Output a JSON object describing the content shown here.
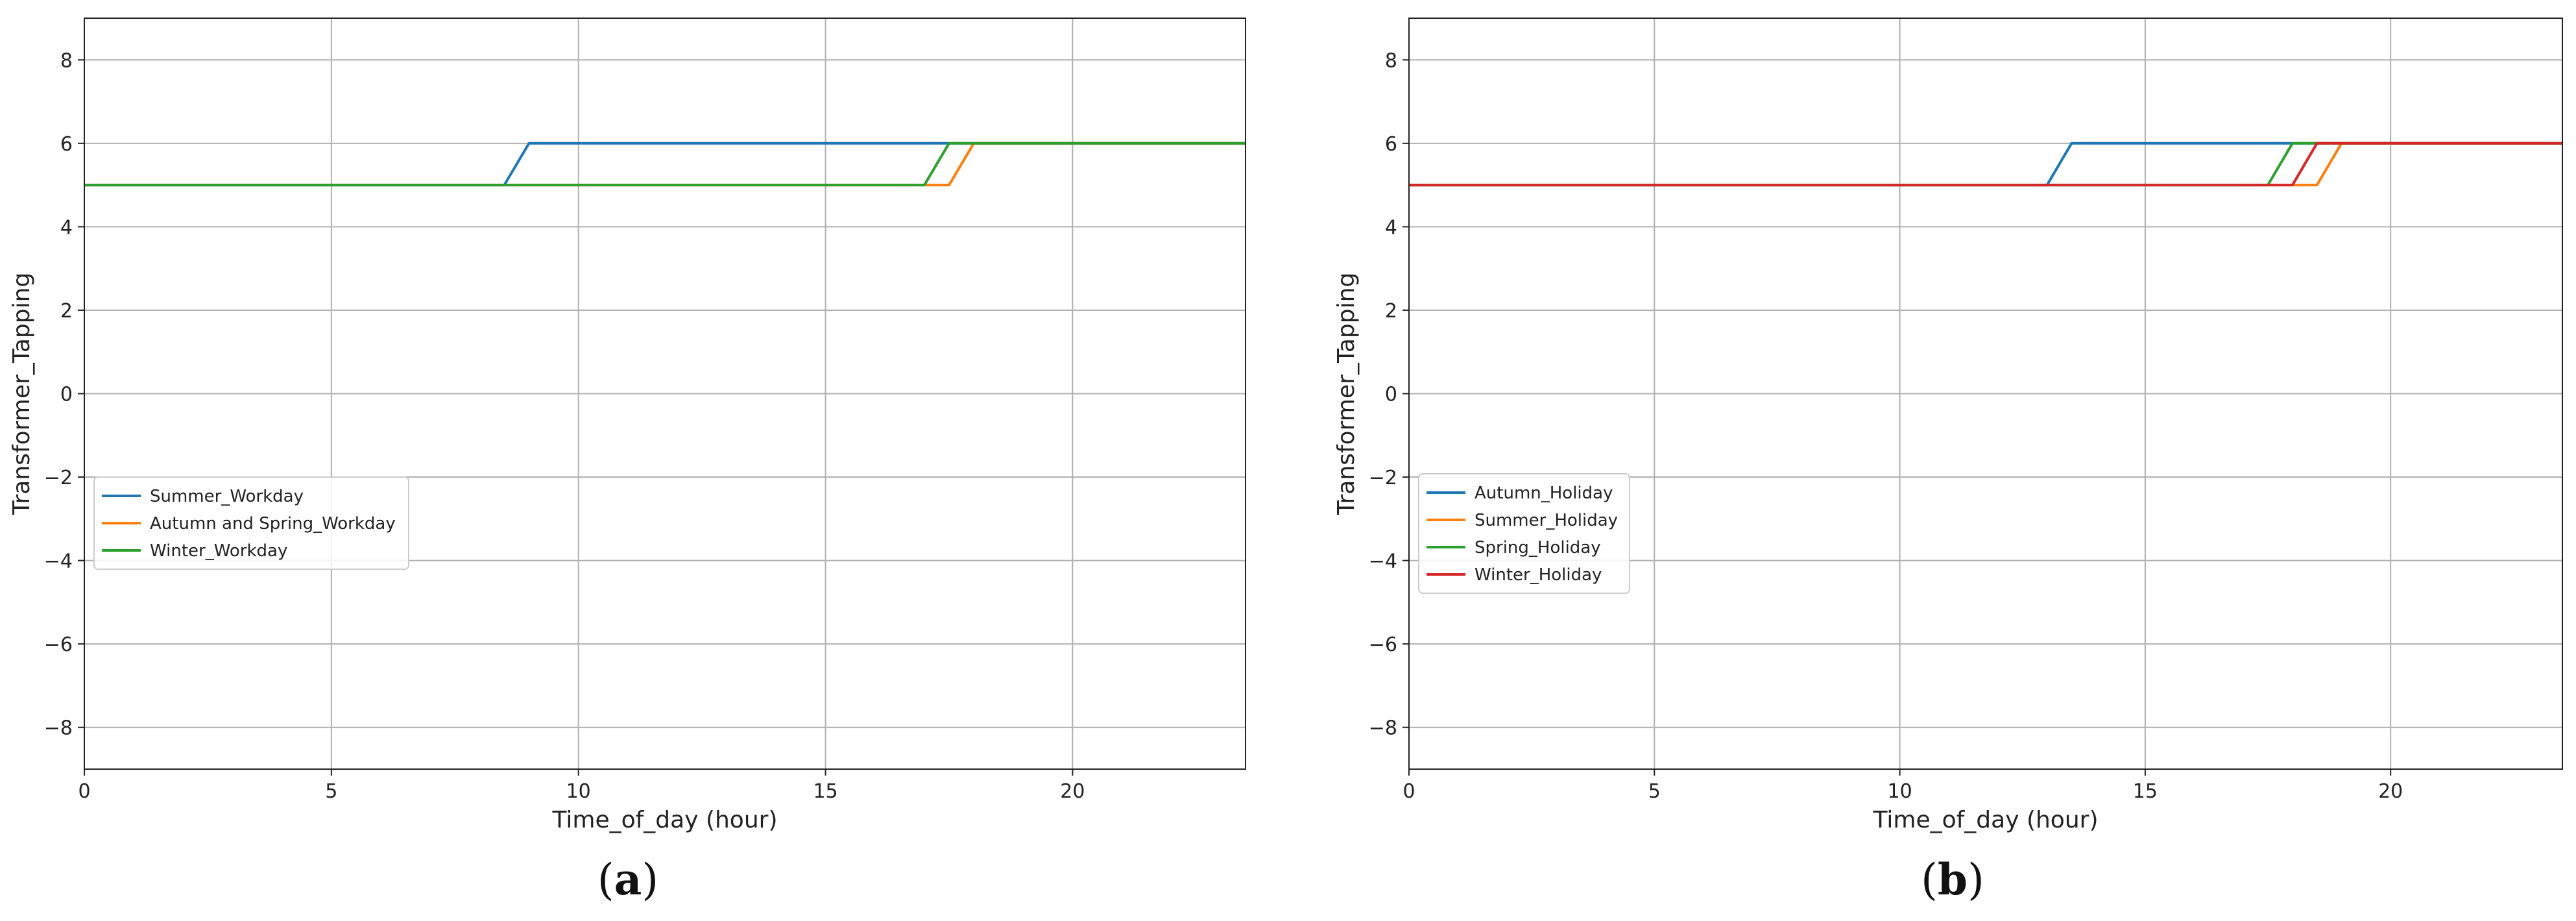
{
  "chart_data": [
    {
      "type": "line",
      "caption": {
        "open": "(",
        "letter": "a",
        "close": ")"
      },
      "xlabel": "Time_of_day (hour)",
      "ylabel": "Transformer_Tapping",
      "xlim": [
        0,
        23.5
      ],
      "ylim": [
        -9,
        9
      ],
      "xticks": [
        0,
        5,
        10,
        15,
        20
      ],
      "yticks": [
        -8,
        -6,
        -4,
        -2,
        0,
        2,
        4,
        6,
        8
      ],
      "ytick_labels": [
        "−8",
        "−6",
        "−4",
        "−2",
        "0",
        "2",
        "4",
        "6",
        "8"
      ],
      "grid": true,
      "legend": "center-left",
      "series": [
        {
          "name": "Summer_Workday",
          "color": "#1f77b4",
          "x": [
            0,
            8.5,
            9,
            23.5
          ],
          "y": [
            5,
            5,
            6,
            6
          ]
        },
        {
          "name": "Autumn and Spring_Workday",
          "color": "#ff7f0e",
          "x": [
            0,
            17.5,
            18,
            23.5
          ],
          "y": [
            5,
            5,
            6,
            6
          ]
        },
        {
          "name": "Winter_Workday",
          "color": "#2ca02c",
          "x": [
            0,
            17,
            17.5,
            23.5
          ],
          "y": [
            5,
            5,
            6,
            6
          ]
        }
      ]
    },
    {
      "type": "line",
      "caption": {
        "open": "(",
        "letter": "b",
        "close": ")"
      },
      "xlabel": "Time_of_day (hour)",
      "ylabel": "Transformer_Tapping",
      "xlim": [
        0,
        23.5
      ],
      "ylim": [
        -9,
        9
      ],
      "xticks": [
        0,
        5,
        10,
        15,
        20
      ],
      "yticks": [
        -8,
        -6,
        -4,
        -2,
        0,
        2,
        4,
        6,
        8
      ],
      "ytick_labels": [
        "−8",
        "−6",
        "−4",
        "−2",
        "0",
        "2",
        "4",
        "6",
        "8"
      ],
      "grid": true,
      "legend": "center-left",
      "series": [
        {
          "name": "Autumn_Holiday",
          "color": "#1f77b4",
          "x": [
            0,
            13,
            13.5,
            23.5
          ],
          "y": [
            5,
            5,
            6,
            6
          ]
        },
        {
          "name": "Summer_Holiday",
          "color": "#ff7f0e",
          "x": [
            0,
            18.5,
            19,
            23.5
          ],
          "y": [
            5,
            5,
            6,
            6
          ]
        },
        {
          "name": "Spring_Holiday",
          "color": "#2ca02c",
          "x": [
            0,
            17.5,
            18,
            23.5
          ],
          "y": [
            5,
            5,
            6,
            6
          ]
        },
        {
          "name": "Winter_Holiday",
          "color": "#d62728",
          "x": [
            0,
            18,
            18.5,
            23.5
          ],
          "y": [
            5,
            5,
            6,
            6
          ]
        }
      ]
    }
  ]
}
